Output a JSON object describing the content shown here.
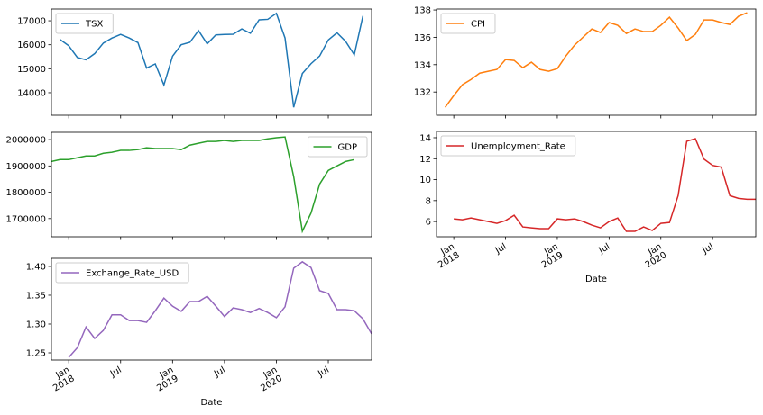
{
  "chart_data": [
    {
      "type": "line",
      "legend": "upper left",
      "x": [
        "2017-12",
        "2018-01",
        "2018-02",
        "2018-03",
        "2018-04",
        "2018-05",
        "2018-06",
        "2018-07",
        "2018-08",
        "2018-09",
        "2018-10",
        "2018-11",
        "2018-12",
        "2019-01",
        "2019-02",
        "2019-03",
        "2019-04",
        "2019-05",
        "2019-06",
        "2019-07",
        "2019-08",
        "2019-09",
        "2019-10",
        "2019-11",
        "2019-12",
        "2020-01",
        "2020-02",
        "2020-03",
        "2020-04",
        "2020-05",
        "2020-06",
        "2020-07",
        "2020-08",
        "2020-09",
        "2020-10",
        "2020-11"
      ],
      "series": [
        {
          "name": "TSX",
          "color": "#1f77b4",
          "values": [
            16220,
            15960,
            15470,
            15370,
            15630,
            16070,
            16280,
            16430,
            16280,
            16090,
            15030,
            15200,
            14320,
            15520,
            16000,
            16100,
            16590,
            16040,
            16410,
            16430,
            16440,
            16660,
            16480,
            17040,
            17060,
            17310,
            16280,
            13390,
            14800,
            15210,
            15530,
            16200,
            16500,
            16140,
            15580,
            17200
          ]
        }
      ],
      "xlim": [
        "2017-11",
        "2020-12"
      ],
      "ylim": [
        13060,
        17490
      ],
      "yticks": [
        14000,
        15000,
        16000,
        17000
      ]
    },
    {
      "type": "line",
      "legend": "upper left",
      "x": [
        "2017-12",
        "2018-01",
        "2018-02",
        "2018-03",
        "2018-04",
        "2018-05",
        "2018-06",
        "2018-07",
        "2018-08",
        "2018-09",
        "2018-10",
        "2018-11",
        "2018-12",
        "2019-01",
        "2019-02",
        "2019-03",
        "2019-04",
        "2019-05",
        "2019-06",
        "2019-07",
        "2019-08",
        "2019-09",
        "2019-10",
        "2019-11",
        "2019-12",
        "2020-01",
        "2020-02",
        "2020-03",
        "2020-04",
        "2020-05",
        "2020-06",
        "2020-07",
        "2020-08",
        "2020-09",
        "2020-10",
        "2020-11"
      ],
      "series": [
        {
          "name": "CPI",
          "color": "#ff7f0e",
          "values": [
            130.88,
            131.74,
            132.53,
            132.92,
            133.38,
            133.52,
            133.65,
            134.37,
            134.31,
            133.78,
            134.18,
            133.65,
            133.52,
            133.71,
            134.64,
            135.43,
            136.02,
            136.61,
            136.35,
            137.08,
            136.88,
            136.28,
            136.61,
            136.42,
            136.42,
            136.88,
            137.47,
            136.68,
            135.76,
            136.22,
            137.27,
            137.27,
            137.08,
            136.94,
            137.54,
            137.8
          ]
        }
      ],
      "xlim": [
        "2017-11",
        "2020-12"
      ],
      "ylim": [
        130.3,
        138.07
      ],
      "yticks": [
        132,
        134,
        136,
        138
      ]
    },
    {
      "type": "line",
      "legend": "upper right",
      "x": [
        "2017-11",
        "2017-12",
        "2018-01",
        "2018-02",
        "2018-03",
        "2018-04",
        "2018-05",
        "2018-06",
        "2018-07",
        "2018-08",
        "2018-09",
        "2018-10",
        "2018-11",
        "2018-12",
        "2019-01",
        "2019-02",
        "2019-03",
        "2019-04",
        "2019-05",
        "2019-06",
        "2019-07",
        "2019-08",
        "2019-09",
        "2019-10",
        "2019-11",
        "2019-12",
        "2020-01",
        "2020-02",
        "2020-03",
        "2020-04",
        "2020-05",
        "2020-06",
        "2020-07",
        "2020-08",
        "2020-09",
        "2020-10"
      ],
      "series": [
        {
          "name": "GDP",
          "color": "#2ca02c",
          "values": [
            1917000,
            1924000,
            1924000,
            1931000,
            1938000,
            1938000,
            1948000,
            1952000,
            1959000,
            1959000,
            1962000,
            1969000,
            1966000,
            1966000,
            1966000,
            1962000,
            1979000,
            1986000,
            1993000,
            1993000,
            1997000,
            1993000,
            1997000,
            1997000,
            1997000,
            2003000,
            2007000,
            2010000,
            1859000,
            1652000,
            1721000,
            1831000,
            1883000,
            1900000,
            1917000,
            1924000
          ]
        }
      ],
      "xlim": [
        "2017-11",
        "2020-12"
      ],
      "ylim": [
        1631000,
        2027600
      ],
      "yticks": [
        1700000,
        1800000,
        1900000,
        2000000
      ]
    },
    {
      "type": "line",
      "legend": "upper left",
      "xlabel": "Date",
      "x": [
        "2018-01",
        "2018-02",
        "2018-03",
        "2018-04",
        "2018-05",
        "2018-06",
        "2018-07",
        "2018-08",
        "2018-09",
        "2018-10",
        "2018-11",
        "2018-12",
        "2019-01",
        "2019-02",
        "2019-03",
        "2019-04",
        "2019-05",
        "2019-06",
        "2019-07",
        "2019-08",
        "2019-09",
        "2019-10",
        "2019-11",
        "2019-12",
        "2020-01",
        "2020-02",
        "2020-03",
        "2020-04",
        "2020-05",
        "2020-06",
        "2020-07",
        "2020-08",
        "2020-09",
        "2020-10",
        "2020-11",
        "2020-12"
      ],
      "series": [
        {
          "name": "Unemployment_Rate",
          "color": "#d62728",
          "values": [
            6.26,
            6.17,
            6.34,
            6.17,
            6.0,
            5.83,
            6.09,
            6.6,
            5.49,
            5.4,
            5.32,
            5.32,
            6.26,
            6.17,
            6.26,
            6.0,
            5.66,
            5.4,
            6.0,
            6.34,
            5.06,
            5.06,
            5.49,
            5.15,
            5.83,
            5.91,
            8.47,
            13.66,
            13.91,
            11.96,
            11.36,
            11.19,
            8.47,
            8.21,
            8.13,
            8.13
          ]
        }
      ],
      "xlim": [
        "2017-11",
        "2020-12"
      ],
      "ylim": [
        4.55,
        14.6
      ],
      "yticks": [
        6,
        8,
        10,
        12,
        14
      ],
      "xticks": [
        {
          "value": "2018-01",
          "label": "Jan 2018"
        },
        {
          "value": "2018-07",
          "label": "Jul"
        },
        {
          "value": "2019-01",
          "label": "Jan 2019"
        },
        {
          "value": "2019-07",
          "label": "Jul"
        },
        {
          "value": "2020-01",
          "label": "Jan 2020"
        },
        {
          "value": "2020-07",
          "label": "Jul"
        }
      ]
    },
    {
      "type": "line",
      "legend": "upper left",
      "xlabel": "Date",
      "x": [
        "2018-01",
        "2018-02",
        "2018-03",
        "2018-04",
        "2018-05",
        "2018-06",
        "2018-07",
        "2018-08",
        "2018-09",
        "2018-10",
        "2018-11",
        "2018-12",
        "2019-01",
        "2019-02",
        "2019-03",
        "2019-04",
        "2019-05",
        "2019-06",
        "2019-07",
        "2019-08",
        "2019-09",
        "2019-10",
        "2019-11",
        "2019-12",
        "2020-01",
        "2020-02",
        "2020-03",
        "2020-04",
        "2020-05",
        "2020-06",
        "2020-07",
        "2020-08",
        "2020-09",
        "2020-10",
        "2020-11",
        "2020-12"
      ],
      "series": [
        {
          "name": "Exchange_Rate_USD",
          "color": "#9467bd",
          "values": [
            1.242,
            1.259,
            1.295,
            1.275,
            1.289,
            1.316,
            1.316,
            1.306,
            1.306,
            1.303,
            1.323,
            1.345,
            1.331,
            1.322,
            1.339,
            1.339,
            1.348,
            1.331,
            1.313,
            1.328,
            1.325,
            1.32,
            1.327,
            1.32,
            1.311,
            1.33,
            1.397,
            1.408,
            1.398,
            1.358,
            1.353,
            1.325,
            1.325,
            1.323,
            1.309,
            1.283
          ]
        }
      ],
      "xlim": [
        "2017-11",
        "2020-12"
      ],
      "ylim": [
        1.2375,
        1.414
      ],
      "yticks": [
        1.25,
        {
          "value": 1.3,
          "label": "1.30"
        },
        1.35,
        {
          "value": 1.4,
          "label": "1.40"
        }
      ],
      "xticks": [
        {
          "value": "2018-01",
          "label": "Jan 2018"
        },
        {
          "value": "2018-07",
          "label": "Jul"
        },
        {
          "value": "2019-01",
          "label": "Jan 2019"
        },
        {
          "value": "2019-07",
          "label": "Jul"
        },
        {
          "value": "2020-01",
          "label": "Jan 2020"
        },
        {
          "value": "2020-07",
          "label": "Jul"
        }
      ]
    }
  ]
}
